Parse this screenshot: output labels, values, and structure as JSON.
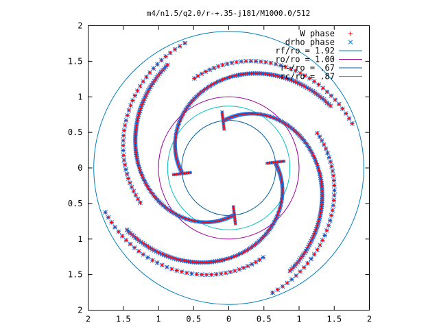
{
  "chart_data": {
    "type": "scatter",
    "title": "m4/n1.5/q2.0/r-+.35-j181/M1000.0/512",
    "xlabel": "",
    "ylabel": "",
    "xlim": [
      -2,
      2
    ],
    "ylim": [
      -2,
      2
    ],
    "x_ticks": [
      "2",
      "1.5",
      "1",
      "0.5",
      "0",
      "0.5",
      "1",
      "1.5",
      "2"
    ],
    "y_ticks": [
      "2",
      "1.5",
      "1",
      "0.5",
      "0",
      "0.5",
      "1",
      "1.5",
      "2"
    ],
    "grid": false,
    "legend_position": "top-right",
    "spiral_arms": 4,
    "series": [
      {
        "name": "W phase",
        "marker": "plus",
        "color": "#ff0000"
      },
      {
        "name": "drho phase",
        "marker": "cross",
        "color": "#0080ff"
      }
    ],
    "circles": [
      {
        "name": "rf/ro = 1.92",
        "radius": 1.92,
        "color": "#0080c0"
      },
      {
        "name": "ro/ro = 1.00",
        "radius": 1.0,
        "color": "#a000a0"
      },
      {
        "name": "r-/ro = .67",
        "radius": 0.67,
        "color": "#0060a0"
      },
      {
        "name": "rc/ro = .87",
        "radius": 0.87,
        "color": "#00c0c0"
      }
    ]
  }
}
